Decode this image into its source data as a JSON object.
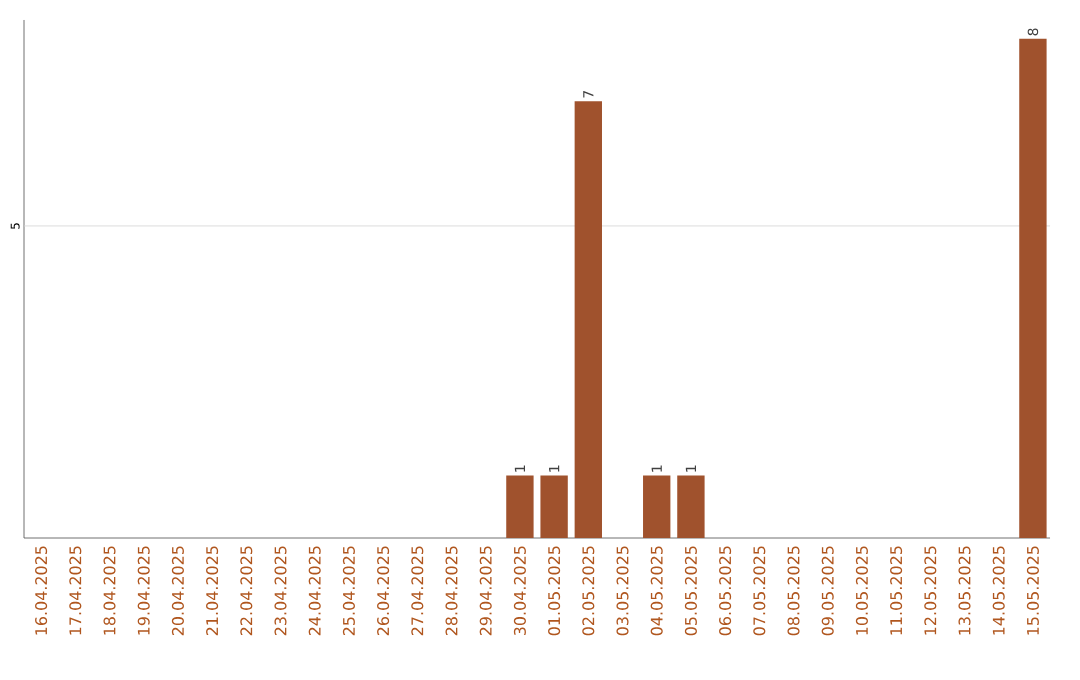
{
  "chart_data": {
    "type": "bar",
    "categories": [
      "16.04.2025",
      "17.04.2025",
      "18.04.2025",
      "19.04.2025",
      "20.04.2025",
      "21.04.2025",
      "22.04.2025",
      "23.04.2025",
      "24.04.2025",
      "25.04.2025",
      "26.04.2025",
      "27.04.2025",
      "28.04.2025",
      "29.04.2025",
      "30.04.2025",
      "01.05.2025",
      "02.05.2025",
      "03.05.2025",
      "04.05.2025",
      "05.05.2025",
      "06.05.2025",
      "07.05.2025",
      "08.05.2025",
      "09.05.2025",
      "10.05.2025",
      "11.05.2025",
      "12.05.2025",
      "13.05.2025",
      "14.05.2025",
      "15.05.2025"
    ],
    "values": [
      null,
      null,
      null,
      null,
      null,
      null,
      null,
      null,
      null,
      null,
      null,
      null,
      null,
      null,
      1,
      1,
      7,
      null,
      1,
      1,
      null,
      null,
      null,
      null,
      null,
      null,
      null,
      null,
      null,
      8
    ],
    "data_labels": true,
    "color": "#a0522d",
    "ylim": [
      0,
      8.3
    ],
    "ref_lines": [
      {
        "axis": "y",
        "value": 5,
        "label": "5",
        "color": "#d3d3d3"
      }
    ]
  }
}
